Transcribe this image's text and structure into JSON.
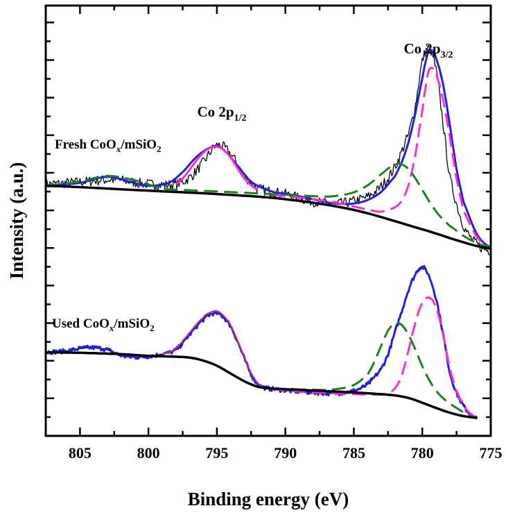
{
  "chart_data": {
    "type": "line",
    "title": "",
    "xlabel": "Binding energy (eV)",
    "ylabel": "Intensity (a.u.)",
    "x_reversed": true,
    "xlim": [
      807.5,
      775
    ],
    "ylim": [
      0,
      1
    ],
    "x_ticks": [
      805,
      800,
      795,
      790,
      785,
      780,
      775
    ],
    "x_tick_labels": [
      "805",
      "800",
      "795",
      "790",
      "785",
      "780",
      "775"
    ],
    "y_tick_labels_shown": false,
    "grid": false,
    "annotations": [
      {
        "id": "co2p12",
        "text": "Co 2p",
        "sub": "1/2",
        "at_x": 795,
        "at_y": 0.78
      },
      {
        "id": "co2p32",
        "text": "Co 2p",
        "sub": "3/2",
        "at_x": 780,
        "at_y": 0.97
      },
      {
        "id": "fresh",
        "pre": "Fresh CoO",
        "sub1": "x",
        "mid": "/mSiO",
        "sub2": "2",
        "at_x": 804.3,
        "at_y": 0.68
      },
      {
        "id": "used",
        "pre": "Used CoO",
        "sub1": "x",
        "mid": "/mSiO",
        "sub2": "2",
        "at_x": 804.8,
        "at_y": 0.245
      }
    ],
    "series": [
      {
        "group": "fresh",
        "role": "raw",
        "color": "#000000",
        "dash": "",
        "width": 1.3,
        "noise": 0.012,
        "x": [
          807.5,
          805,
          802.5,
          800,
          798,
          797,
          796,
          795,
          794,
          793,
          792,
          790,
          788,
          786,
          784,
          783,
          782,
          781,
          780.5,
          780,
          779.5,
          779,
          778.5,
          778,
          777,
          776,
          775
        ],
        "y": [
          0.585,
          0.59,
          0.595,
          0.585,
          0.585,
          0.6,
          0.635,
          0.675,
          0.655,
          0.605,
          0.575,
          0.562,
          0.545,
          0.54,
          0.555,
          0.58,
          0.625,
          0.7,
          0.77,
          0.87,
          0.9,
          0.85,
          0.73,
          0.6,
          0.49,
          0.445,
          0.43
        ]
      },
      {
        "group": "fresh",
        "role": "envelope",
        "color": "#1f1fe0",
        "dash": "",
        "width": 3,
        "x": [
          807.5,
          805,
          803,
          801,
          800,
          798.5,
          797.5,
          796.5,
          795.5,
          795,
          794.5,
          793.5,
          792.5,
          791,
          790,
          789,
          788,
          787,
          786,
          785,
          784,
          783,
          782,
          781.5,
          781,
          780.5,
          780,
          779.7,
          779.5,
          779.2,
          779,
          778.5,
          778,
          777.5,
          777,
          776,
          775
        ],
        "y": [
          0.582,
          0.588,
          0.602,
          0.588,
          0.581,
          0.588,
          0.613,
          0.648,
          0.67,
          0.673,
          0.664,
          0.628,
          0.59,
          0.568,
          0.563,
          0.557,
          0.55,
          0.543,
          0.539,
          0.54,
          0.548,
          0.567,
          0.603,
          0.636,
          0.683,
          0.751,
          0.83,
          0.877,
          0.895,
          0.892,
          0.878,
          0.82,
          0.725,
          0.62,
          0.545,
          0.468,
          0.438
        ]
      },
      {
        "group": "fresh",
        "role": "fit-2p3/2-main",
        "color": "#ff2dd0",
        "dash": "20 9",
        "width": 3,
        "x": [
          791,
          789,
          787,
          786,
          785,
          784,
          783,
          782,
          781.5,
          781,
          780.5,
          780,
          779.7,
          779.5,
          779.2,
          779,
          778.5,
          778,
          777.5,
          777,
          776,
          775
        ],
        "y": [
          0.56,
          0.554,
          0.546,
          0.54,
          0.533,
          0.526,
          0.521,
          0.531,
          0.546,
          0.583,
          0.655,
          0.755,
          0.822,
          0.852,
          0.854,
          0.842,
          0.783,
          0.698,
          0.598,
          0.525,
          0.462,
          0.436
        ]
      },
      {
        "group": "fresh",
        "role": "fit-satellite",
        "color": "#1e7f1e",
        "dash": "20 9",
        "width": 3,
        "x": [
          807.5,
          805,
          803,
          801,
          799,
          797,
          795,
          793,
          791,
          789,
          787,
          786,
          785,
          784,
          783,
          782,
          781.5,
          781,
          780.5,
          780,
          779.5,
          779,
          778.5,
          778,
          777,
          776,
          775
        ],
        "y": [
          0.582,
          0.591,
          0.604,
          0.594,
          0.575,
          0.571,
          0.568,
          0.565,
          0.562,
          0.559,
          0.556,
          0.559,
          0.566,
          0.582,
          0.608,
          0.631,
          0.631,
          0.62,
          0.598,
          0.572,
          0.545,
          0.522,
          0.503,
          0.488,
          0.465,
          0.448,
          0.438
        ]
      },
      {
        "group": "fresh",
        "role": "fit-2p1/2",
        "color": "#ff2dd0",
        "dash": "",
        "width": 3,
        "x": [
          798,
          797.5,
          797,
          796.5,
          796,
          795.5,
          795,
          794.5,
          794,
          793.5,
          793,
          792.5,
          792
        ],
        "y": [
          0.584,
          0.598,
          0.618,
          0.64,
          0.658,
          0.669,
          0.672,
          0.665,
          0.647,
          0.622,
          0.598,
          0.582,
          0.572
        ]
      },
      {
        "group": "fresh",
        "role": "background",
        "color": "#000000",
        "dash": "",
        "width": 3.5,
        "x": [
          807.5,
          800,
          795,
          790,
          785,
          780,
          775
        ],
        "y": [
          0.581,
          0.57,
          0.562,
          0.55,
          0.525,
          0.48,
          0.435
        ]
      },
      {
        "group": "used",
        "role": "raw",
        "color": "#000000",
        "dash": "",
        "width": 1.6,
        "x": [
          807.5,
          806,
          805,
          804,
          803,
          802,
          801,
          800,
          799,
          798,
          797,
          796,
          795.5,
          795,
          794.5,
          794,
          793.5,
          793,
          792.5,
          792,
          791.5,
          791,
          790,
          789,
          788,
          787,
          786,
          785,
          784,
          783,
          782.5,
          782,
          781.5,
          781,
          780.5,
          780.2,
          780,
          779.8,
          779.5,
          779,
          778.5,
          778,
          777.5,
          777,
          776.5,
          776
        ],
        "y": [
          0.195,
          0.197,
          0.203,
          0.205,
          0.2,
          0.187,
          0.183,
          0.185,
          0.19,
          0.2,
          0.235,
          0.27,
          0.282,
          0.285,
          0.275,
          0.255,
          0.22,
          0.18,
          0.143,
          0.12,
          0.112,
          0.109,
          0.106,
          0.103,
          0.101,
          0.099,
          0.1,
          0.105,
          0.12,
          0.155,
          0.19,
          0.24,
          0.29,
          0.34,
          0.375,
          0.39,
          0.392,
          0.387,
          0.37,
          0.32,
          0.24,
          0.15,
          0.1,
          0.07,
          0.05,
          0.04
        ]
      },
      {
        "group": "used",
        "role": "envelope",
        "color": "#1f1fe0",
        "dash": "",
        "width": 3,
        "noise": 0.005,
        "x": [
          807.5,
          806,
          805,
          804,
          803,
          802,
          801,
          800,
          799,
          798,
          797,
          796,
          795.5,
          795,
          794.5,
          794,
          793.5,
          793,
          792.5,
          792,
          791.5,
          791,
          790,
          789,
          788,
          787,
          786,
          785,
          784,
          783,
          782.5,
          782,
          781.5,
          781,
          780.5,
          780.2,
          780,
          779.8,
          779.5,
          779,
          778.5,
          778,
          777.5,
          777,
          776.5,
          776
        ],
        "y": [
          0.195,
          0.197,
          0.203,
          0.205,
          0.2,
          0.187,
          0.183,
          0.185,
          0.19,
          0.2,
          0.235,
          0.27,
          0.282,
          0.285,
          0.275,
          0.255,
          0.22,
          0.18,
          0.143,
          0.12,
          0.112,
          0.109,
          0.106,
          0.103,
          0.101,
          0.099,
          0.1,
          0.105,
          0.12,
          0.155,
          0.19,
          0.24,
          0.29,
          0.34,
          0.375,
          0.39,
          0.392,
          0.387,
          0.37,
          0.32,
          0.24,
          0.15,
          0.1,
          0.07,
          0.05,
          0.04
        ]
      },
      {
        "group": "used",
        "role": "fit-2p1/2",
        "color": "#c0307a",
        "dash": "",
        "width": 2,
        "x": [
          799,
          798,
          797,
          796,
          795.5,
          795,
          794.5,
          794,
          793.5,
          793,
          792.5,
          792,
          791.5
        ],
        "y": [
          0.19,
          0.203,
          0.24,
          0.275,
          0.287,
          0.29,
          0.279,
          0.258,
          0.222,
          0.183,
          0.146,
          0.122,
          0.112
        ]
      },
      {
        "group": "used",
        "role": "fit-2p3/2-main",
        "color": "#ff2dd0",
        "dash": "20 9",
        "width": 3,
        "x": [
          791,
          789,
          787,
          785,
          784,
          783,
          782.5,
          782,
          781.5,
          781,
          780.5,
          780,
          779.5,
          779,
          778.5,
          778,
          777.5,
          777,
          776.5,
          776
        ],
        "y": [
          0.108,
          0.103,
          0.1,
          0.097,
          0.096,
          0.096,
          0.099,
          0.11,
          0.14,
          0.2,
          0.265,
          0.31,
          0.322,
          0.3,
          0.238,
          0.158,
          0.105,
          0.072,
          0.052,
          0.042
        ]
      },
      {
        "group": "used",
        "role": "fit-satellite",
        "color": "#1e7f1e",
        "dash": "20 9",
        "width": 3,
        "x": [
          791,
          789,
          787,
          786,
          785,
          784,
          783.5,
          783,
          782.5,
          782,
          781.5,
          781,
          780.5,
          780,
          779.5,
          779,
          778.5,
          778,
          777.5,
          777,
          776.5,
          776
        ],
        "y": [
          0.11,
          0.108,
          0.107,
          0.11,
          0.118,
          0.142,
          0.172,
          0.21,
          0.245,
          0.262,
          0.258,
          0.235,
          0.2,
          0.162,
          0.13,
          0.105,
          0.088,
          0.075,
          0.065,
          0.055,
          0.047,
          0.04
        ]
      },
      {
        "group": "used",
        "role": "background",
        "color": "#000000",
        "dash": "",
        "width": 3.5,
        "x": [
          807.5,
          805,
          802,
          800,
          798,
          797,
          796,
          795,
          794,
          793,
          792,
          791,
          789,
          787,
          785,
          783,
          782,
          781,
          780,
          779,
          778,
          777,
          776
        ],
        "y": [
          0.194,
          0.193,
          0.19,
          0.186,
          0.184,
          0.182,
          0.175,
          0.163,
          0.145,
          0.127,
          0.114,
          0.11,
          0.107,
          0.104,
          0.101,
          0.097,
          0.094,
          0.088,
          0.077,
          0.065,
          0.054,
          0.046,
          0.042
        ]
      }
    ]
  }
}
